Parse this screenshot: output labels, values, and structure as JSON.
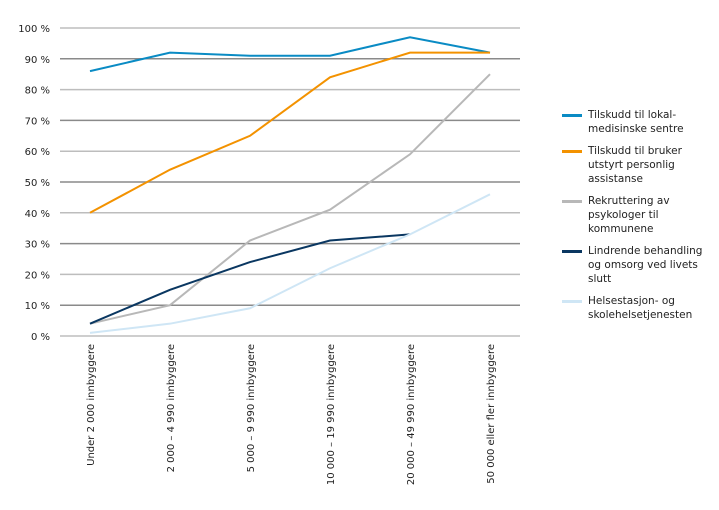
{
  "chart_data": {
    "type": "line",
    "categories": [
      "Under 2 000 innbyggere",
      "2 000 – 4 990 innbyggere",
      "5 000 – 9 990 innbyggere",
      "10 000 – 19 990 innbyggere",
      "20 000 – 49 990 innbyggere",
      "50 000 eller fler innbyggere"
    ],
    "yticks": [
      "0 %",
      "10 %",
      "20 %",
      "30 %",
      "40 %",
      "50 %",
      "60 %",
      "70 %",
      "80 %",
      "90 %",
      "100 %"
    ],
    "ylim": [
      0,
      100
    ],
    "grid": true,
    "legend_position": "right",
    "series": [
      {
        "name": "Tilskudd til lokal-medisinske sentre",
        "color": "#0a8bc4",
        "values": [
          86,
          92,
          91,
          91,
          97,
          92
        ]
      },
      {
        "name": "Tilskudd til bruker utstyrt personlig assistanse",
        "color": "#f39200",
        "values": [
          40,
          54,
          65,
          84,
          92,
          92
        ]
      },
      {
        "name": "Rekruttering av psykologer til kommunene",
        "color": "#b8b8b8",
        "values": [
          4,
          10,
          31,
          41,
          59,
          85
        ]
      },
      {
        "name": "Lindrende behandling og omsorg ved livets slutt",
        "color": "#0a3761",
        "values": [
          4,
          15,
          24,
          31,
          33,
          null
        ]
      },
      {
        "name": "Helsestasjon- og skolehelsetjenesten",
        "color": "#cfe6f5",
        "values": [
          1,
          4,
          9,
          22,
          33,
          46
        ]
      }
    ]
  }
}
